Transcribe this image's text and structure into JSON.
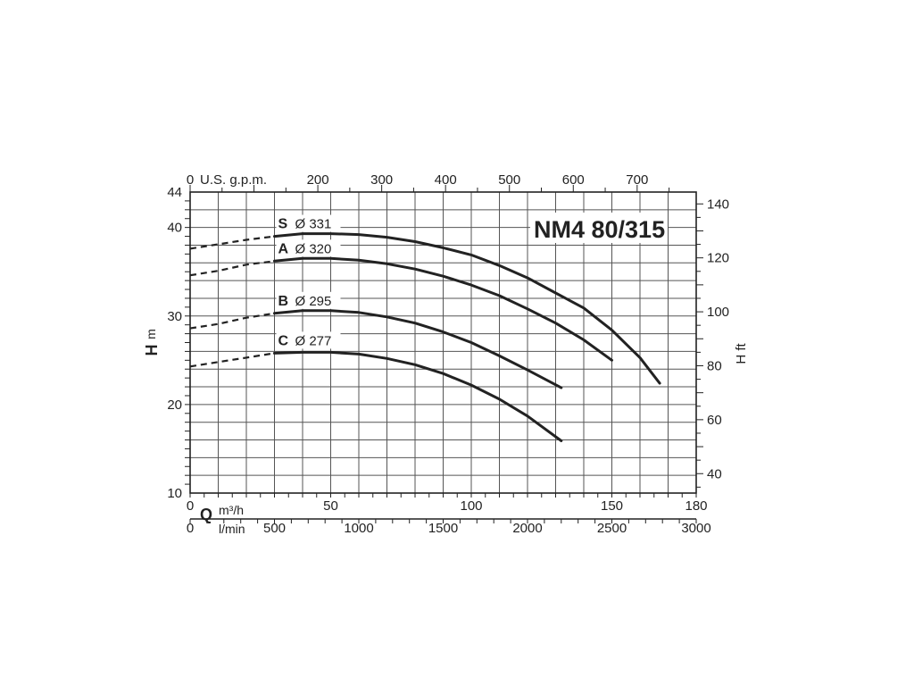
{
  "chart_data": {
    "type": "line",
    "title": "NM4 80/315",
    "x_bottom": {
      "label_letter": "Q",
      "unit": "m³/h",
      "range": [
        0,
        180
      ],
      "ticks": [
        0,
        50,
        100,
        150,
        180
      ]
    },
    "x_bottom_lmin": {
      "unit": "l/min",
      "range": [
        0,
        3000
      ],
      "ticks": [
        0,
        500,
        1000,
        1500,
        2000,
        2500,
        3000
      ]
    },
    "x_top": {
      "unit": "U.S. g.p.m.",
      "range": [
        0,
        792.5
      ],
      "ticks": [
        0,
        200,
        300,
        400,
        500,
        600,
        700
      ]
    },
    "y_left": {
      "label_letter": "H",
      "unit": "m",
      "range": [
        10,
        44
      ],
      "ticks": [
        10,
        20,
        30,
        40,
        44
      ]
    },
    "y_right": {
      "label": "H ft",
      "range": [
        32.8,
        144.4
      ],
      "ticks": [
        40,
        60,
        80,
        100,
        120,
        140
      ]
    },
    "grid": true,
    "series": [
      {
        "name": "S",
        "diameter": "Ø 331",
        "dashed": [
          [
            0,
            37.6
          ],
          [
            10,
            38.1
          ],
          [
            20,
            38.6
          ],
          [
            30,
            39.0
          ]
        ],
        "solid": [
          [
            30,
            39.0
          ],
          [
            40,
            39.3
          ],
          [
            50,
            39.3
          ],
          [
            60,
            39.2
          ],
          [
            70,
            38.9
          ],
          [
            80,
            38.4
          ],
          [
            90,
            37.7
          ],
          [
            100,
            36.9
          ],
          [
            110,
            35.7
          ],
          [
            120,
            34.3
          ],
          [
            130,
            32.6
          ],
          [
            140,
            30.9
          ],
          [
            150,
            28.4
          ],
          [
            160,
            25.3
          ],
          [
            167,
            22.4
          ]
        ]
      },
      {
        "name": "A",
        "diameter": "Ø 320",
        "dashed": [
          [
            0,
            34.6
          ],
          [
            10,
            35.1
          ],
          [
            20,
            35.8
          ],
          [
            30,
            36.2
          ]
        ],
        "solid": [
          [
            30,
            36.2
          ],
          [
            40,
            36.5
          ],
          [
            50,
            36.5
          ],
          [
            60,
            36.3
          ],
          [
            70,
            35.9
          ],
          [
            80,
            35.3
          ],
          [
            90,
            34.5
          ],
          [
            100,
            33.5
          ],
          [
            110,
            32.3
          ],
          [
            120,
            30.8
          ],
          [
            130,
            29.2
          ],
          [
            140,
            27.3
          ],
          [
            150,
            25.0
          ]
        ]
      },
      {
        "name": "B",
        "diameter": "Ø 295",
        "dashed": [
          [
            0,
            28.6
          ],
          [
            10,
            29.1
          ],
          [
            20,
            29.8
          ],
          [
            30,
            30.3
          ]
        ],
        "solid": [
          [
            30,
            30.3
          ],
          [
            40,
            30.6
          ],
          [
            50,
            30.6
          ],
          [
            60,
            30.4
          ],
          [
            70,
            29.9
          ],
          [
            80,
            29.2
          ],
          [
            90,
            28.2
          ],
          [
            100,
            27.0
          ],
          [
            110,
            25.5
          ],
          [
            120,
            23.9
          ],
          [
            132,
            21.9
          ]
        ]
      },
      {
        "name": "C",
        "diameter": "Ø 277",
        "dashed": [
          [
            0,
            24.3
          ],
          [
            10,
            24.8
          ],
          [
            20,
            25.3
          ],
          [
            30,
            25.8
          ]
        ],
        "solid": [
          [
            30,
            25.8
          ],
          [
            40,
            25.9
          ],
          [
            50,
            25.9
          ],
          [
            60,
            25.7
          ],
          [
            70,
            25.2
          ],
          [
            80,
            24.5
          ],
          [
            90,
            23.5
          ],
          [
            100,
            22.2
          ],
          [
            110,
            20.6
          ],
          [
            120,
            18.7
          ],
          [
            132,
            15.9
          ]
        ]
      }
    ]
  }
}
